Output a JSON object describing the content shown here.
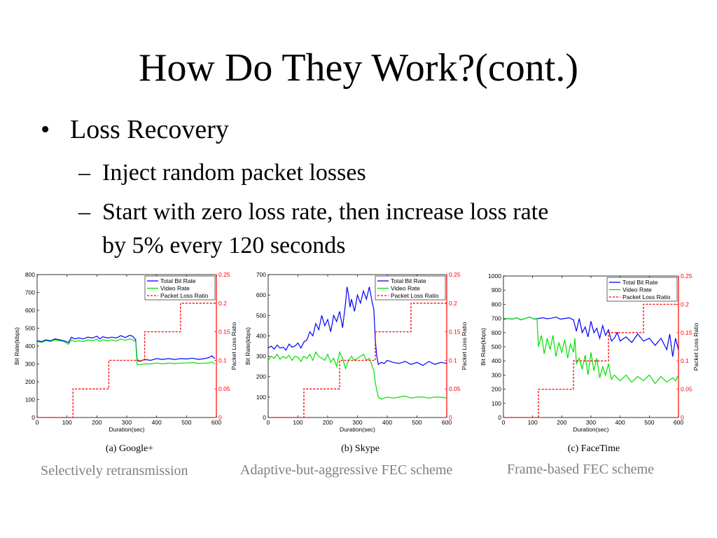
{
  "slide": {
    "title": "How Do They Work?(cont.)",
    "bullet_main": "Loss Recovery",
    "sub1": "Inject random packet losses",
    "sub2_line1": "Start with zero loss rate, then increase loss rate",
    "sub2_line2": "by 5% every 120 seconds",
    "bullet_char": "•",
    "dash_char": "–"
  },
  "captions": [
    "Selectively retransmission",
    "Adaptive-but-aggressive FEC scheme",
    "Frame-based FEC scheme"
  ],
  "colors": {
    "total": "#0000ff",
    "video": "#00e000",
    "loss": "#ff0000",
    "caption": "#7f7f7f"
  },
  "chart_data": [
    {
      "type": "line",
      "panel_label": "(a) Google+",
      "xlabel": "Duration(sec)",
      "ylabel": "Bit Rate(kbps)",
      "y2label": "Packet Loss Ratio",
      "xlim": [
        0,
        600
      ],
      "ylim": [
        0,
        800
      ],
      "y2lim": [
        0,
        0.25
      ],
      "xticks": [
        0,
        100,
        200,
        300,
        400,
        500,
        600
      ],
      "yticks": [
        0,
        100,
        200,
        300,
        400,
        500,
        600,
        700,
        800
      ],
      "y2ticks": [
        0,
        0.05,
        0.1,
        0.15,
        0.2,
        0.25
      ],
      "y2ticklabels": [
        "0",
        "0.05",
        "0.1",
        "0.15",
        "0.2",
        "0.25"
      ],
      "legend": [
        "Total Bit Rate",
        "Video Rate",
        "Packet Loss Ratio"
      ],
      "series": [
        {
          "name": "Total Bit Rate",
          "axis": "left",
          "x": [
            0,
            15,
            30,
            45,
            60,
            75,
            90,
            105,
            115,
            125,
            140,
            155,
            170,
            185,
            200,
            210,
            220,
            235,
            250,
            265,
            280,
            295,
            310,
            320,
            330,
            335,
            345,
            360,
            380,
            400,
            420,
            440,
            460,
            480,
            500,
            520,
            540,
            560,
            575,
            585,
            595
          ],
          "y": [
            430,
            425,
            435,
            430,
            440,
            435,
            430,
            420,
            450,
            440,
            445,
            440,
            450,
            445,
            455,
            440,
            452,
            445,
            450,
            445,
            458,
            448,
            460,
            455,
            435,
            320,
            315,
            325,
            320,
            330,
            325,
            330,
            325,
            330,
            328,
            332,
            325,
            330,
            335,
            345,
            330
          ]
        },
        {
          "name": "Video Rate",
          "axis": "left",
          "x": [
            0,
            15,
            30,
            45,
            60,
            75,
            90,
            105,
            115,
            125,
            140,
            155,
            170,
            185,
            200,
            210,
            220,
            235,
            250,
            265,
            280,
            295,
            310,
            320,
            330,
            335,
            345,
            360,
            380,
            400,
            420,
            440,
            460,
            480,
            500,
            520,
            540,
            560,
            575,
            585,
            595
          ],
          "y": [
            425,
            420,
            430,
            425,
            435,
            430,
            425,
            410,
            435,
            425,
            430,
            425,
            435,
            430,
            438,
            425,
            435,
            430,
            435,
            428,
            440,
            432,
            440,
            435,
            425,
            295,
            295,
            300,
            300,
            305,
            300,
            305,
            302,
            305,
            305,
            308,
            302,
            305,
            305,
            310,
            300
          ]
        },
        {
          "name": "Packet Loss Ratio",
          "axis": "right",
          "x": [
            0,
            120,
            120,
            240,
            240,
            360,
            360,
            480,
            480,
            600
          ],
          "y": [
            0,
            0,
            0.05,
            0.05,
            0.1,
            0.1,
            0.15,
            0.15,
            0.2,
            0.2
          ]
        }
      ]
    },
    {
      "type": "line",
      "panel_label": "(b) Skype",
      "xlabel": "Duration(sec)",
      "ylabel": "Bit Rate(kbps)",
      "y2label": "Packet Loss Ratio",
      "xlim": [
        0,
        600
      ],
      "ylim": [
        0,
        700
      ],
      "y2lim": [
        0,
        0.25
      ],
      "xticks": [
        0,
        100,
        200,
        300,
        400,
        500,
        600
      ],
      "yticks": [
        0,
        100,
        200,
        300,
        400,
        500,
        600,
        700
      ],
      "y2ticks": [
        0,
        0.05,
        0.1,
        0.15,
        0.2,
        0.25
      ],
      "y2ticklabels": [
        "0",
        "0.05",
        "0.1",
        "0.15",
        "0.2",
        "0.25"
      ],
      "legend": [
        "Total Bit Rate",
        "Video Rate",
        "Packet Loss Ratio"
      ],
      "series": [
        {
          "name": "Total Bit Rate",
          "axis": "left",
          "x": [
            0,
            10,
            20,
            30,
            40,
            50,
            60,
            70,
            80,
            90,
            100,
            110,
            120,
            130,
            140,
            150,
            160,
            170,
            180,
            190,
            200,
            210,
            220,
            230,
            240,
            250,
            260,
            265,
            270,
            275,
            280,
            290,
            300,
            310,
            320,
            330,
            340,
            350,
            355,
            360,
            365,
            370,
            380,
            390,
            400,
            420,
            440,
            460,
            480,
            500,
            520,
            540,
            560,
            580,
            600
          ],
          "y": [
            340,
            350,
            335,
            355,
            340,
            345,
            330,
            360,
            345,
            350,
            365,
            340,
            370,
            380,
            420,
            400,
            460,
            430,
            500,
            450,
            480,
            420,
            500,
            470,
            520,
            440,
            560,
            640,
            600,
            540,
            580,
            520,
            600,
            560,
            620,
            580,
            640,
            560,
            530,
            380,
            300,
            260,
            270,
            265,
            280,
            270,
            265,
            275,
            260,
            270,
            255,
            275,
            260,
            270,
            265
          ]
        },
        {
          "name": "Video Rate",
          "axis": "left",
          "x": [
            0,
            10,
            20,
            30,
            40,
            50,
            60,
            70,
            80,
            90,
            100,
            110,
            120,
            130,
            140,
            150,
            160,
            170,
            180,
            190,
            200,
            210,
            220,
            230,
            240,
            250,
            260,
            270,
            280,
            290,
            300,
            310,
            320,
            330,
            340,
            350,
            355,
            360,
            370,
            380,
            400,
            420,
            440,
            460,
            480,
            500,
            520,
            540,
            560,
            580,
            600
          ],
          "y": [
            280,
            300,
            290,
            310,
            285,
            300,
            290,
            305,
            280,
            300,
            295,
            275,
            300,
            290,
            310,
            280,
            320,
            300,
            290,
            280,
            310,
            270,
            290,
            250,
            320,
            290,
            240,
            280,
            300,
            280,
            290,
            300,
            310,
            280,
            290,
            250,
            230,
            170,
            100,
            90,
            100,
            95,
            100,
            105,
            95,
            100,
            100,
            95,
            100,
            100,
            95
          ]
        },
        {
          "name": "Packet Loss Ratio",
          "axis": "right",
          "x": [
            0,
            120,
            120,
            240,
            240,
            360,
            360,
            480,
            480,
            600
          ],
          "y": [
            0,
            0,
            0.05,
            0.05,
            0.1,
            0.1,
            0.15,
            0.15,
            0.2,
            0.2
          ]
        }
      ]
    },
    {
      "type": "line",
      "panel_label": "(c) FaceTime",
      "xlabel": "Duration(sec)",
      "ylabel": "Bit Rate(kbps)",
      "y2label": "Packet Loss Ratio",
      "xlim": [
        0,
        600
      ],
      "ylim": [
        0,
        1000
      ],
      "y2lim": [
        0,
        0.25
      ],
      "xticks": [
        0,
        100,
        200,
        300,
        400,
        500,
        600
      ],
      "yticks": [
        0,
        100,
        200,
        300,
        400,
        500,
        600,
        700,
        800,
        900,
        1000
      ],
      "y2ticks": [
        0,
        0.05,
        0.1,
        0.15,
        0.2,
        0.25
      ],
      "y2ticklabels": [
        "0",
        "0.05",
        "0.1",
        "0.15",
        "0.2",
        "0.25"
      ],
      "legend": [
        "Total Bit Rate",
        "Video Rate",
        "Packet Loss Ratio"
      ],
      "series": [
        {
          "name": "Total Bit Rate",
          "axis": "left",
          "x": [
            0,
            15,
            30,
            45,
            60,
            75,
            90,
            105,
            120,
            135,
            150,
            165,
            180,
            195,
            210,
            225,
            240,
            250,
            260,
            270,
            280,
            290,
            300,
            310,
            320,
            330,
            340,
            350,
            360,
            370,
            380,
            390,
            400,
            420,
            440,
            460,
            480,
            500,
            520,
            540,
            560,
            570,
            580,
            590,
            600
          ],
          "y": [
            690,
            700,
            695,
            705,
            690,
            700,
            710,
            695,
            700,
            705,
            698,
            702,
            710,
            695,
            700,
            705,
            690,
            610,
            700,
            600,
            640,
            570,
            680,
            600,
            630,
            560,
            650,
            580,
            620,
            540,
            560,
            600,
            540,
            570,
            530,
            590,
            540,
            560,
            510,
            560,
            480,
            590,
            430,
            560,
            480
          ]
        },
        {
          "name": "Video Rate",
          "axis": "left",
          "x": [
            0,
            15,
            30,
            45,
            60,
            75,
            90,
            105,
            115,
            120,
            130,
            140,
            150,
            160,
            170,
            180,
            190,
            200,
            210,
            220,
            230,
            240,
            245,
            250,
            260,
            270,
            280,
            290,
            300,
            310,
            320,
            330,
            340,
            350,
            360,
            370,
            380,
            400,
            420,
            440,
            460,
            480,
            500,
            520,
            540,
            560,
            580,
            590,
            600
          ],
          "y": [
            690,
            700,
            695,
            705,
            690,
            700,
            710,
            695,
            700,
            500,
            580,
            450,
            560,
            480,
            580,
            430,
            530,
            460,
            550,
            420,
            520,
            460,
            560,
            380,
            420,
            340,
            440,
            300,
            460,
            330,
            420,
            280,
            360,
            300,
            380,
            270,
            300,
            260,
            300,
            250,
            290,
            260,
            300,
            240,
            290,
            250,
            280,
            260,
            300
          ]
        },
        {
          "name": "Packet Loss Ratio",
          "axis": "right",
          "x": [
            0,
            120,
            120,
            240,
            240,
            360,
            360,
            480,
            480,
            600
          ],
          "y": [
            0,
            0,
            0.05,
            0.05,
            0.1,
            0.1,
            0.15,
            0.15,
            0.2,
            0.2
          ]
        }
      ]
    }
  ]
}
